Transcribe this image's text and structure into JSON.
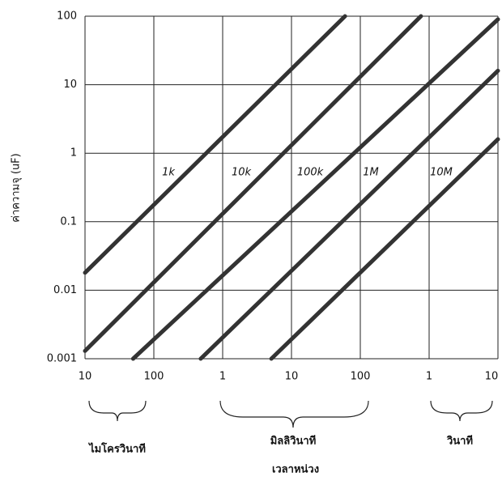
{
  "chart_data": {
    "type": "line",
    "ylabel": "ค่าความจุ (uF)",
    "xlabel": "เวลาหน่วง",
    "x_groups": [
      "ไมโครวินาที",
      "มิลลิวินาที",
      "วินาที"
    ],
    "xlog": true,
    "ylog": true,
    "grid": true,
    "xlim": [
      1e-05,
      10
    ],
    "ylim": [
      0.001,
      100
    ],
    "xticks": [
      {
        "value": 1e-05,
        "label": "10"
      },
      {
        "value": 0.0001,
        "label": "100"
      },
      {
        "value": 0.001,
        "label": "1"
      },
      {
        "value": 0.01,
        "label": "10"
      },
      {
        "value": 0.1,
        "label": "100"
      },
      {
        "value": 1,
        "label": "1"
      },
      {
        "value": 10,
        "label": "10"
      }
    ],
    "yticks": [
      0.001,
      0.01,
      0.1,
      1,
      10,
      100
    ],
    "series": [
      {
        "name": "1k",
        "color": "#333333",
        "x": [
          1e-05,
          0.06
        ],
        "values": [
          0.018,
          100
        ]
      },
      {
        "name": "10k",
        "color": "#333333",
        "x": [
          1e-05,
          0.76
        ],
        "values": [
          0.0013,
          100
        ]
      },
      {
        "name": "100k",
        "color": "#333333",
        "x": [
          5e-05,
          10
        ],
        "values": [
          0.001,
          90
        ]
      },
      {
        "name": "1M",
        "color": "#333333",
        "x": [
          0.00048,
          10
        ],
        "values": [
          0.001,
          16
        ]
      },
      {
        "name": "10M",
        "color": "#333333",
        "x": [
          0.0051,
          10
        ],
        "values": [
          0.001,
          1.6
        ]
      }
    ]
  }
}
